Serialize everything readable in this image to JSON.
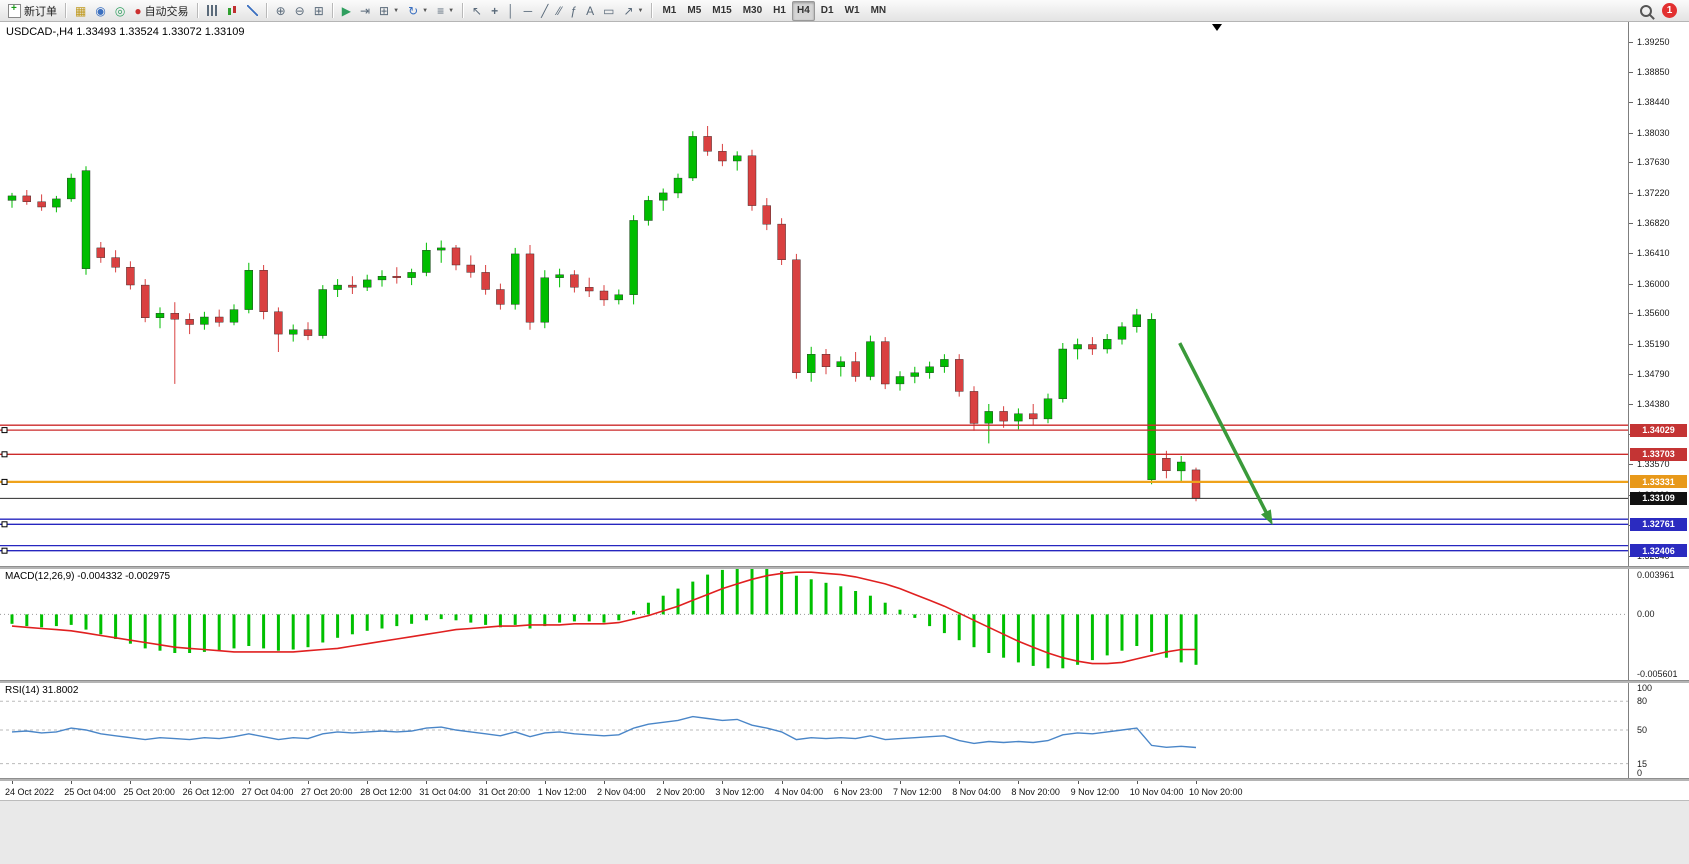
{
  "toolbar": {
    "new_order_label": "新订单",
    "auto_trading_label": "自动交易",
    "timeframes": [
      "M1",
      "M5",
      "M15",
      "M30",
      "H1",
      "H4",
      "D1",
      "W1",
      "MN"
    ],
    "active_timeframe": "H4",
    "notification_count": "1"
  },
  "chart": {
    "title": "USDCAD-,H4",
    "ohlc": "1.33493 1.33524 1.33072 1.33109"
  },
  "macd": {
    "label": "MACD(12,26,9)",
    "values": "-0.004332 -0.002975"
  },
  "rsi": {
    "label": "RSI(14)",
    "value": "31.8002"
  },
  "chart_data": {
    "type": "candlestick",
    "symbol": "USDCAD",
    "timeframe": "H4",
    "main": {
      "price_range": [
        1.322,
        1.3952
      ],
      "up_color": "#00bd00",
      "down_color": "#d94040",
      "price_labels": [
        "1.39250",
        "1.38850",
        "1.38440",
        "1.38030",
        "1.37630",
        "1.37220",
        "1.36820",
        "1.36410",
        "1.36000",
        "1.35600",
        "1.35190",
        "1.34790",
        "1.34380",
        "1.33970",
        "1.33570",
        "1.33160",
        "1.32750",
        "1.32340"
      ],
      "candles": [
        [
          1.3712,
          1.3722,
          1.3702,
          1.3718
        ],
        [
          1.3718,
          1.3726,
          1.3706,
          1.371
        ],
        [
          1.371,
          1.372,
          1.3698,
          1.3703
        ],
        [
          1.3703,
          1.3718,
          1.3696,
          1.3714
        ],
        [
          1.3714,
          1.3748,
          1.371,
          1.3742
        ],
        [
          1.362,
          1.3758,
          1.3612,
          1.3752
        ],
        [
          1.3648,
          1.3656,
          1.3628,
          1.3635
        ],
        [
          1.3635,
          1.3645,
          1.3615,
          1.3622
        ],
        [
          1.3622,
          1.363,
          1.3592,
          1.3598
        ],
        [
          1.3598,
          1.3606,
          1.3548,
          1.3554
        ],
        [
          1.3554,
          1.3568,
          1.354,
          1.356
        ],
        [
          1.356,
          1.3575,
          1.3465,
          1.3552
        ],
        [
          1.3552,
          1.356,
          1.3532,
          1.3545
        ],
        [
          1.3545,
          1.3562,
          1.3538,
          1.3555
        ],
        [
          1.3555,
          1.3565,
          1.3542,
          1.3548
        ],
        [
          1.3548,
          1.3572,
          1.3544,
          1.3565
        ],
        [
          1.3565,
          1.3628,
          1.356,
          1.3618
        ],
        [
          1.3618,
          1.3625,
          1.3552,
          1.3562
        ],
        [
          1.3562,
          1.3568,
          1.3508,
          1.3532
        ],
        [
          1.3532,
          1.3545,
          1.3522,
          1.3538
        ],
        [
          1.3538,
          1.3548,
          1.3524,
          1.353
        ],
        [
          1.353,
          1.3598,
          1.3526,
          1.3592
        ],
        [
          1.3592,
          1.3606,
          1.3582,
          1.3598
        ],
        [
          1.3598,
          1.361,
          1.3586,
          1.3595
        ],
        [
          1.3595,
          1.3612,
          1.359,
          1.3605
        ],
        [
          1.3605,
          1.3618,
          1.3596,
          1.361
        ],
        [
          1.361,
          1.3622,
          1.36,
          1.3608
        ],
        [
          1.3608,
          1.362,
          1.3598,
          1.3615
        ],
        [
          1.3615,
          1.3655,
          1.361,
          1.3645
        ],
        [
          1.3645,
          1.3658,
          1.3628,
          1.3648
        ],
        [
          1.3648,
          1.3652,
          1.3618,
          1.3625
        ],
        [
          1.3625,
          1.3638,
          1.3608,
          1.3615
        ],
        [
          1.3615,
          1.3625,
          1.3585,
          1.3592
        ],
        [
          1.3592,
          1.36,
          1.3565,
          1.3572
        ],
        [
          1.3572,
          1.3648,
          1.3565,
          1.364
        ],
        [
          1.364,
          1.3652,
          1.3538,
          1.3548
        ],
        [
          1.3548,
          1.3618,
          1.354,
          1.3608
        ],
        [
          1.3608,
          1.362,
          1.3595,
          1.3612
        ],
        [
          1.3612,
          1.3618,
          1.3588,
          1.3595
        ],
        [
          1.3595,
          1.3608,
          1.3582,
          1.359
        ],
        [
          1.359,
          1.3598,
          1.357,
          1.3578
        ],
        [
          1.3578,
          1.3592,
          1.3572,
          1.3585
        ],
        [
          1.3585,
          1.3692,
          1.3572,
          1.3685
        ],
        [
          1.3685,
          1.3718,
          1.3678,
          1.3712
        ],
        [
          1.3712,
          1.3728,
          1.3698,
          1.3722
        ],
        [
          1.3722,
          1.3748,
          1.3715,
          1.3742
        ],
        [
          1.3742,
          1.3805,
          1.3738,
          1.3798
        ],
        [
          1.3798,
          1.3812,
          1.3772,
          1.3778
        ],
        [
          1.3778,
          1.3788,
          1.3758,
          1.3765
        ],
        [
          1.3765,
          1.3778,
          1.3752,
          1.3772
        ],
        [
          1.3772,
          1.378,
          1.3698,
          1.3705
        ],
        [
          1.3705,
          1.3715,
          1.3672,
          1.368
        ],
        [
          1.368,
          1.3688,
          1.3625,
          1.3632
        ],
        [
          1.3632,
          1.364,
          1.3472,
          1.348
        ],
        [
          1.348,
          1.3515,
          1.3468,
          1.3505
        ],
        [
          1.3505,
          1.3512,
          1.3478,
          1.3488
        ],
        [
          1.3488,
          1.3502,
          1.3475,
          1.3495
        ],
        [
          1.3495,
          1.3508,
          1.3468,
          1.3475
        ],
        [
          1.3475,
          1.353,
          1.347,
          1.3522
        ],
        [
          1.3522,
          1.3528,
          1.3458,
          1.3465
        ],
        [
          1.3465,
          1.3482,
          1.3456,
          1.3475
        ],
        [
          1.3475,
          1.3488,
          1.3466,
          1.348
        ],
        [
          1.348,
          1.3495,
          1.3472,
          1.3488
        ],
        [
          1.3488,
          1.3505,
          1.348,
          1.3498
        ],
        [
          1.3498,
          1.3505,
          1.3448,
          1.3455
        ],
        [
          1.3455,
          1.3462,
          1.3402,
          1.3412
        ],
        [
          1.3412,
          1.3438,
          1.3385,
          1.3428
        ],
        [
          1.3428,
          1.3435,
          1.3406,
          1.3415
        ],
        [
          1.3415,
          1.3432,
          1.3404,
          1.3425
        ],
        [
          1.3425,
          1.3438,
          1.341,
          1.3418
        ],
        [
          1.3418,
          1.3452,
          1.3412,
          1.3445
        ],
        [
          1.3445,
          1.352,
          1.344,
          1.3512
        ],
        [
          1.3512,
          1.3526,
          1.3498,
          1.3518
        ],
        [
          1.3518,
          1.3528,
          1.3504,
          1.3512
        ],
        [
          1.3512,
          1.3532,
          1.3506,
          1.3525
        ],
        [
          1.3525,
          1.3548,
          1.3518,
          1.3542
        ],
        [
          1.3542,
          1.3566,
          1.3534,
          1.3558
        ],
        [
          1.3336,
          1.356,
          1.333,
          1.3552
        ],
        [
          1.3365,
          1.3375,
          1.3338,
          1.3348
        ],
        [
          1.3348,
          1.3368,
          1.3332,
          1.336
        ],
        [
          1.33493,
          1.33524,
          1.33072,
          1.33109
        ]
      ]
    },
    "levels": [
      {
        "price": 1.34095,
        "color": "#cc2a2a",
        "width": 1.3
      },
      {
        "price": 1.34029,
        "color": "#cc2a2a",
        "width": 1.3,
        "tag": "1.34029",
        "tag_bg": "#c43434"
      },
      {
        "price": 1.33703,
        "color": "#cc2a2a",
        "width": 1.3,
        "tag": "1.33703",
        "tag_bg": "#c43434"
      },
      {
        "price": 1.33331,
        "color": "#efa21b",
        "width": 2.2,
        "tag": "1.33331",
        "tag_bg": "#e8991a"
      },
      {
        "price": 1.33109,
        "color": "#2b2b2b",
        "width": 1,
        "tag": "1.33109",
        "tag_bg": "#111111",
        "current": true
      },
      {
        "price": 1.3283,
        "color": "#2626bf",
        "width": 1.3
      },
      {
        "price": 1.32761,
        "color": "#2626bf",
        "width": 1.3,
        "tag": "1.32761",
        "tag_bg": "#2b2bc0"
      },
      {
        "price": 1.32475,
        "color": "#2626bf",
        "width": 1.3
      },
      {
        "price": 1.32406,
        "color": "#2626bf",
        "width": 1.3,
        "tag": "1.32406",
        "tag_bg": "#2b2bc0"
      }
    ],
    "arrow": {
      "from_index": 78.9,
      "from_price": 1.352,
      "to_index": 85.0,
      "to_price": 1.3282,
      "color": "#3a9a3a"
    },
    "macd": {
      "params": "12,26,9",
      "range": [
        -0.005601,
        0.003961
      ],
      "hist_color": "#00c000",
      "signal_color": "#e02020",
      "axis_labels": [
        "0.003961",
        "0.00",
        "-0.005601"
      ],
      "histogram": [
        -0.0008,
        -0.001,
        -0.0011,
        -0.001,
        -0.0009,
        -0.0013,
        -0.0017,
        -0.0021,
        -0.0025,
        -0.0029,
        -0.0031,
        -0.0033,
        -0.0033,
        -0.0032,
        -0.0031,
        -0.0029,
        -0.0027,
        -0.0029,
        -0.0031,
        -0.003,
        -0.0028,
        -0.0024,
        -0.002,
        -0.0017,
        -0.0014,
        -0.0012,
        -0.001,
        -0.0008,
        -0.0005,
        -0.0004,
        -0.0005,
        -0.0007,
        -0.0009,
        -0.0011,
        -0.0009,
        -0.0012,
        -0.001,
        -0.0007,
        -0.0006,
        -0.0006,
        -0.0007,
        -0.0005,
        0.0003,
        0.001,
        0.0016,
        0.0022,
        0.0028,
        0.0034,
        0.0038,
        0.0041,
        0.0042,
        0.004,
        0.0037,
        0.0033,
        0.003,
        0.0027,
        0.0024,
        0.002,
        0.0016,
        0.001,
        0.0004,
        -0.0003,
        -0.001,
        -0.0016,
        -0.0022,
        -0.0028,
        -0.0033,
        -0.0037,
        -0.0041,
        -0.0044,
        -0.0046,
        -0.0046,
        -0.0043,
        -0.0039,
        -0.0035,
        -0.0031,
        -0.0027,
        -0.0032,
        -0.0037,
        -0.0041,
        -0.0043
      ],
      "signal": [
        -0.001,
        -0.0011,
        -0.0012,
        -0.0013,
        -0.0014,
        -0.0016,
        -0.0018,
        -0.002,
        -0.0022,
        -0.0024,
        -0.0026,
        -0.0028,
        -0.0029,
        -0.003,
        -0.0031,
        -0.0032,
        -0.0032,
        -0.0032,
        -0.0032,
        -0.0032,
        -0.0031,
        -0.003,
        -0.0029,
        -0.0027,
        -0.0025,
        -0.0023,
        -0.0021,
        -0.0019,
        -0.0017,
        -0.0015,
        -0.0013,
        -0.0012,
        -0.0011,
        -0.001,
        -0.001,
        -0.0009,
        -0.0009,
        -0.0009,
        -0.0008,
        -0.0008,
        -0.0008,
        -0.0007,
        -0.0004,
        -0.0001,
        0.0003,
        0.0007,
        0.0012,
        0.0017,
        0.0022,
        0.0026,
        0.003,
        0.0033,
        0.0035,
        0.0036,
        0.0036,
        0.0035,
        0.0034,
        0.0032,
        0.0029,
        0.0026,
        0.0022,
        0.0017,
        0.0012,
        0.0007,
        0.0001,
        -0.0005,
        -0.0011,
        -0.0017,
        -0.0023,
        -0.0028,
        -0.0033,
        -0.0037,
        -0.004,
        -0.0042,
        -0.0042,
        -0.0041,
        -0.0038,
        -0.0035,
        -0.0032,
        -0.003,
        -0.003
      ]
    },
    "rsi": {
      "period": 14,
      "current": 31.8002,
      "color": "#4a86c8",
      "axis_labels": [
        "100",
        "80",
        "50",
        "15",
        "0"
      ],
      "level_lines": [
        80,
        50,
        15
      ],
      "series": [
        48,
        49,
        47,
        48,
        52,
        50,
        46,
        44,
        42,
        40,
        42,
        41,
        40,
        42,
        41,
        43,
        46,
        43,
        40,
        42,
        41,
        46,
        48,
        47,
        48,
        49,
        48,
        49,
        52,
        53,
        50,
        48,
        46,
        44,
        48,
        43,
        47,
        48,
        46,
        45,
        44,
        45,
        52,
        56,
        58,
        60,
        64,
        62,
        60,
        61,
        55,
        52,
        48,
        40,
        42,
        41,
        42,
        41,
        44,
        40,
        41,
        42,
        43,
        44,
        39,
        36,
        38,
        37,
        38,
        37,
        39,
        45,
        47,
        46,
        48,
        50,
        52,
        34,
        32,
        33,
        31.8
      ]
    },
    "time_labels": [
      "24 Oct 2022",
      "25 Oct 04:00",
      "25 Oct 20:00",
      "26 Oct 12:00",
      "27 Oct 04:00",
      "27 Oct 20:00",
      "28 Oct 12:00",
      "31 Oct 04:00",
      "31 Oct 20:00",
      "1 Nov 12:00",
      "2 Nov 04:00",
      "2 Nov 20:00",
      "3 Nov 12:00",
      "4 Nov 04:00",
      "6 Nov 23:00",
      "7 Nov 12:00",
      "8 Nov 04:00",
      "8 Nov 20:00",
      "9 Nov 12:00",
      "10 Nov 04:00",
      "10 Nov 20:00"
    ]
  }
}
